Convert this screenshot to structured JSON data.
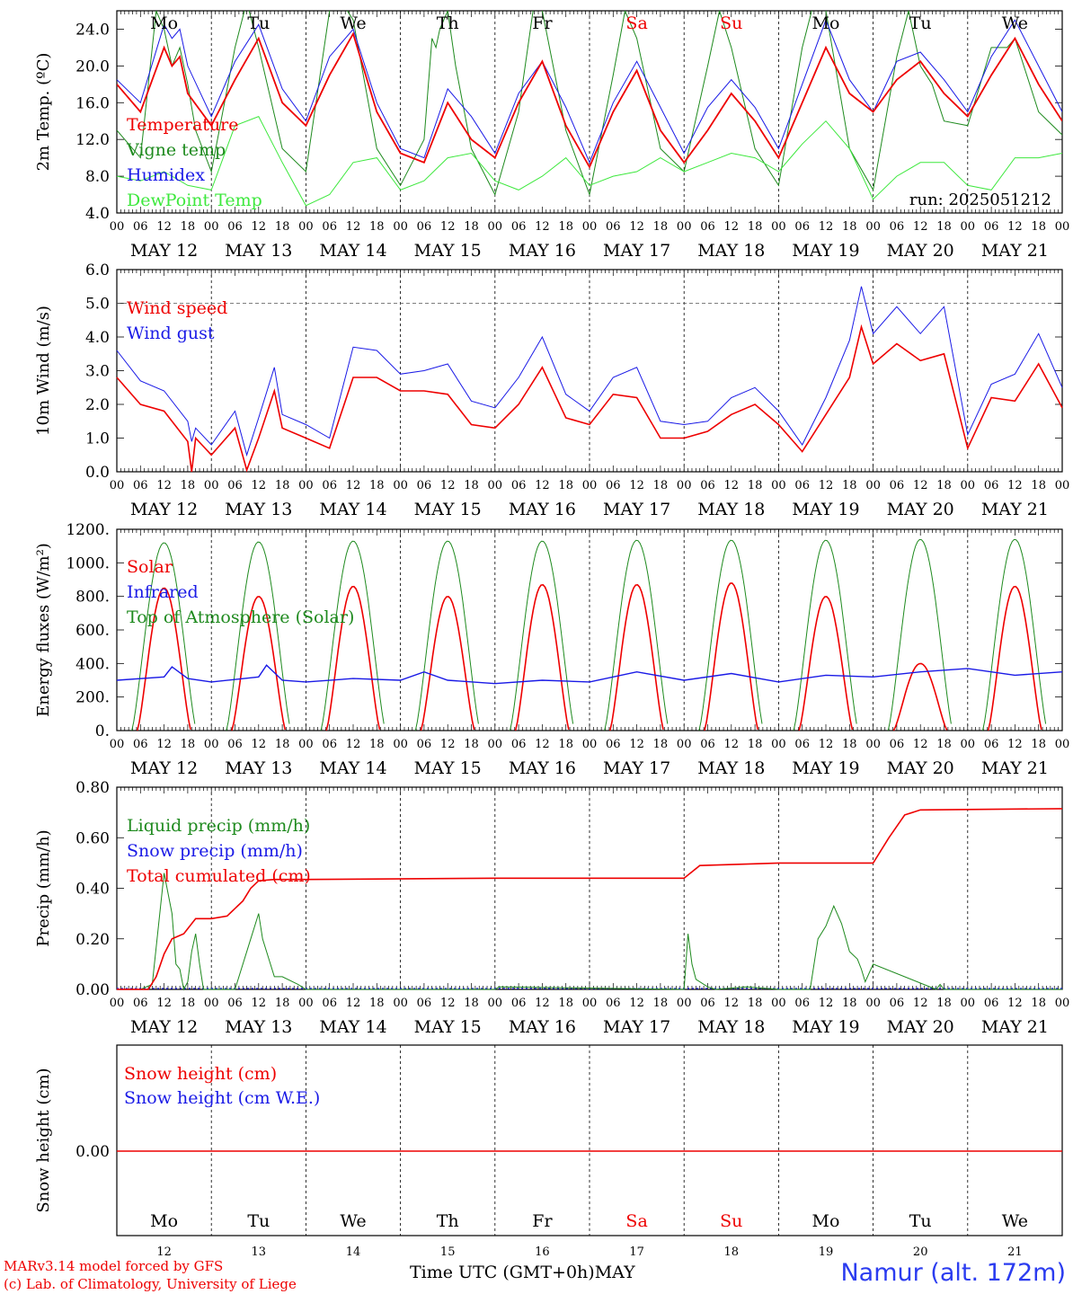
{
  "colors": {
    "red": "#ee0000",
    "blue": "#1a1ae6",
    "darkgreen": "#1e8a1e",
    "lightgreen": "#3ee83e",
    "weekend": "#ee0000",
    "station": "#2b3cf0"
  },
  "footer": {
    "credit1": "MARv3.14 model forced by GFS",
    "credit2": "(c) Lab. of Climatology, University of Liege",
    "xtitle": "Time UTC (GMT+0h)",
    "month": "MAY",
    "station": "Namur (alt. 172m)"
  },
  "chart_data": [
    {
      "id": "temp",
      "type": "line",
      "ylabel": "2m Temp. (ºC)",
      "ylim": [
        4,
        26
      ],
      "yticks": [
        4,
        8,
        12,
        16,
        20,
        24
      ],
      "ytick_labels": [
        "4.0",
        "8.0",
        "12.0",
        "16.0",
        "20.0",
        "24.0"
      ],
      "annotation": "run: 2025051212",
      "day_labels": [
        "Mo",
        "Tu",
        "We",
        "Th",
        "Fr",
        "Sa",
        "Su",
        "Mo",
        "Tu",
        "We"
      ],
      "date_labels": [
        "MAY 12",
        "MAY 13",
        "MAY 14",
        "MAY 15",
        "MAY 16",
        "MAY 17",
        "MAY 18",
        "MAY 19",
        "MAY 20",
        "MAY 21"
      ],
      "hour_labels": [
        "00",
        "06",
        "12",
        "18"
      ],
      "series": [
        {
          "name": "Temperature",
          "color": "red",
          "x": [
            0,
            6,
            12,
            14,
            16,
            18,
            24,
            30,
            36,
            42,
            48,
            54,
            60,
            66,
            72,
            78,
            84,
            90,
            96,
            102,
            108,
            114,
            120,
            126,
            132,
            138,
            144,
            150,
            156,
            162,
            168,
            174,
            180,
            186,
            192,
            198,
            204,
            210,
            216,
            222,
            228,
            234,
            240
          ],
          "y": [
            18,
            15,
            22,
            20,
            21,
            17,
            13.5,
            18.5,
            23,
            16,
            13.5,
            19,
            23.5,
            15,
            10.5,
            9.5,
            16,
            12,
            10,
            16,
            20.5,
            13.5,
            9,
            15,
            19.5,
            13,
            9.5,
            13,
            17,
            14,
            10,
            16,
            22,
            17,
            15,
            18.5,
            20.5,
            17,
            14.5,
            19,
            23,
            18,
            14
          ]
        },
        {
          "name": "Vigne temp",
          "color": "darkgreen",
          "x": [
            0,
            6,
            10,
            12,
            14,
            16,
            18,
            20,
            24,
            30,
            33,
            36,
            42,
            48,
            54,
            57,
            60,
            66,
            72,
            78,
            80,
            81,
            82,
            84,
            86,
            90,
            96,
            102,
            106,
            108,
            114,
            120,
            126,
            129,
            132,
            138,
            144,
            150,
            153,
            156,
            162,
            168,
            174,
            177,
            180,
            186,
            192,
            198,
            201,
            204,
            207,
            210,
            216,
            222,
            226,
            228,
            234,
            240
          ],
          "y": [
            13,
            10,
            26,
            24,
            20,
            22,
            18,
            13,
            8.5,
            22,
            27,
            22,
            11,
            8.5,
            26,
            27,
            25,
            11,
            7,
            12,
            23,
            22,
            24,
            26,
            20,
            11,
            6,
            15,
            27,
            26,
            13,
            6,
            19,
            26,
            23,
            11,
            8.5,
            20,
            26,
            22,
            11,
            7,
            22,
            27,
            26,
            11,
            6.5,
            21,
            26,
            20,
            18,
            14,
            13.5,
            22,
            22,
            23,
            15,
            12.5
          ]
        },
        {
          "name": "Humidex",
          "color": "blue",
          "x": [
            0,
            6,
            12,
            14,
            16,
            18,
            24,
            30,
            36,
            42,
            48,
            54,
            60,
            66,
            72,
            78,
            84,
            90,
            96,
            102,
            108,
            114,
            120,
            126,
            132,
            138,
            144,
            150,
            156,
            162,
            168,
            174,
            180,
            186,
            192,
            198,
            204,
            210,
            216,
            222,
            228,
            234,
            240
          ],
          "y": [
            18.5,
            16,
            24.5,
            23,
            24,
            20,
            14.5,
            20.5,
            24.5,
            17.5,
            14,
            21,
            24,
            16,
            11,
            10,
            17.5,
            14.5,
            10.5,
            17,
            20.5,
            15.5,
            9.5,
            16,
            20.5,
            15.5,
            10.5,
            15.5,
            18.5,
            15.5,
            11,
            18,
            25,
            18.5,
            15,
            20.5,
            21.5,
            18.5,
            15,
            21,
            25,
            20,
            15
          ]
        },
        {
          "name": "DewPoint Temp",
          "color": "lightgreen",
          "x": [
            0,
            6,
            12,
            18,
            24,
            30,
            36,
            42,
            48,
            54,
            60,
            66,
            72,
            78,
            84,
            90,
            96,
            102,
            108,
            114,
            120,
            126,
            132,
            138,
            144,
            150,
            156,
            162,
            168,
            174,
            180,
            186,
            192,
            198,
            204,
            210,
            216,
            222,
            228,
            234,
            240
          ],
          "y": [
            8,
            7.5,
            8.5,
            7,
            6.5,
            13.5,
            14.5,
            9.5,
            4.8,
            6,
            9.5,
            10,
            6.5,
            7.5,
            10,
            10.5,
            7.5,
            6.5,
            8,
            10,
            7,
            8,
            8.5,
            10,
            8.5,
            9.5,
            10.5,
            10,
            8.5,
            11.5,
            14,
            11,
            5.5,
            8,
            9.5,
            9.5,
            7,
            6.5,
            10,
            10,
            10.5
          ]
        }
      ]
    },
    {
      "id": "wind",
      "type": "line",
      "ylabel": "10m Wind (m/s)",
      "ylim": [
        0,
        6
      ],
      "yticks": [
        0,
        1,
        2,
        3,
        4,
        5,
        6
      ],
      "ytick_labels": [
        "0.0",
        "1.0",
        "2.0",
        "3.0",
        "4.0",
        "5.0",
        "6.0"
      ],
      "reference_line": 5,
      "date_labels": [
        "MAY 12",
        "MAY 13",
        "MAY 14",
        "MAY 15",
        "MAY 16",
        "MAY 17",
        "MAY 18",
        "MAY 19",
        "MAY 20",
        "MAY 21"
      ],
      "hour_labels": [
        "00",
        "06",
        "12",
        "18"
      ],
      "series": [
        {
          "name": "Wind speed",
          "color": "red",
          "x": [
            0,
            6,
            12,
            18,
            19,
            20,
            24,
            30,
            33,
            36,
            40,
            42,
            48,
            54,
            60,
            66,
            72,
            78,
            84,
            90,
            96,
            102,
            108,
            114,
            120,
            126,
            132,
            138,
            144,
            150,
            156,
            162,
            168,
            174,
            180,
            186,
            189,
            192,
            198,
            204,
            210,
            216,
            222,
            228,
            234,
            240
          ],
          "y": [
            2.8,
            2,
            1.8,
            0.9,
            0,
            1,
            0.5,
            1.3,
            0.05,
            1,
            2.4,
            1.3,
            1,
            0.7,
            2.8,
            2.8,
            2.4,
            2.4,
            2.3,
            1.4,
            1.3,
            2,
            3.1,
            1.6,
            1.4,
            2.3,
            2.2,
            1,
            1,
            1.2,
            1.7,
            2,
            1.4,
            0.6,
            1.7,
            2.8,
            4.3,
            3.2,
            3.8,
            3.3,
            3.5,
            0.7,
            2.2,
            2.1,
            3.2,
            1.9
          ]
        },
        {
          "name": "Wind gust",
          "color": "blue",
          "x": [
            0,
            6,
            12,
            18,
            19,
            20,
            24,
            30,
            33,
            36,
            40,
            42,
            48,
            54,
            60,
            66,
            72,
            78,
            84,
            90,
            96,
            102,
            108,
            114,
            120,
            126,
            132,
            138,
            144,
            150,
            156,
            162,
            168,
            174,
            180,
            186,
            189,
            192,
            198,
            204,
            210,
            216,
            222,
            228,
            234,
            240
          ],
          "y": [
            3.6,
            2.7,
            2.4,
            1.5,
            0.9,
            1.3,
            0.8,
            1.8,
            0.5,
            1.6,
            3.1,
            1.7,
            1.4,
            1,
            3.7,
            3.6,
            2.9,
            3,
            3.2,
            2.1,
            1.9,
            2.8,
            4,
            2.3,
            1.8,
            2.8,
            3.1,
            1.5,
            1.4,
            1.5,
            2.2,
            2.5,
            1.8,
            0.8,
            2.2,
            3.9,
            5.5,
            4.1,
            4.9,
            4.1,
            4.9,
            1.1,
            2.6,
            2.9,
            4.1,
            2.5
          ]
        }
      ]
    },
    {
      "id": "energy",
      "type": "line",
      "ylabel": "Energy fluxes (W/m²)",
      "ylim": [
        0,
        1200
      ],
      "yticks": [
        0,
        200,
        400,
        600,
        800,
        1000,
        1200
      ],
      "ytick_labels": [
        "0.",
        "200.",
        "400.",
        "600.",
        "800.",
        "1000.",
        "1200."
      ],
      "date_labels": [
        "MAY 12",
        "MAY 13",
        "MAY 14",
        "MAY 15",
        "MAY 16",
        "MAY 17",
        "MAY 18",
        "MAY 19",
        "MAY 20",
        "MAY 21"
      ],
      "hour_labels": [
        "00",
        "06",
        "12",
        "18"
      ],
      "series": [
        {
          "name": "Solar",
          "color": "red",
          "daily_peak": [
            850,
            800,
            860,
            800,
            870,
            870,
            880,
            800,
            400,
            860
          ]
        },
        {
          "name": "Infrared",
          "color": "blue",
          "x": [
            0,
            12,
            14,
            18,
            24,
            36,
            38,
            42,
            48,
            60,
            72,
            78,
            84,
            96,
            108,
            120,
            132,
            144,
            156,
            168,
            180,
            192,
            204,
            216,
            228,
            240
          ],
          "y": [
            300,
            320,
            380,
            310,
            290,
            320,
            390,
            300,
            290,
            310,
            300,
            350,
            300,
            280,
            300,
            290,
            350,
            300,
            340,
            290,
            330,
            320,
            350,
            370,
            330,
            350
          ]
        },
        {
          "name": "Top of Atmosphere (Solar)",
          "color": "darkgreen",
          "daily_peak": [
            1120,
            1125,
            1130,
            1130,
            1130,
            1135,
            1135,
            1135,
            1140,
            1140
          ]
        }
      ]
    },
    {
      "id": "precip",
      "type": "line",
      "ylabel": "Precip (mm/h)",
      "ylim": [
        0,
        0.8
      ],
      "yticks": [
        0,
        0.2,
        0.4,
        0.6,
        0.8
      ],
      "ytick_labels": [
        "0.00",
        "0.20",
        "0.40",
        "0.60",
        "0.80"
      ],
      "date_labels": [
        "MAY 12",
        "MAY 13",
        "MAY 14",
        "MAY 15",
        "MAY 16",
        "MAY 17",
        "MAY 18",
        "MAY 19",
        "MAY 20",
        "MAY 21"
      ],
      "hour_labels": [
        "00",
        "06",
        "12",
        "18"
      ],
      "series": [
        {
          "name": "Liquid precip (mm/h)",
          "color": "darkgreen",
          "x": [
            0,
            6,
            9,
            12,
            14,
            15,
            16,
            17,
            18,
            19,
            20,
            21,
            22,
            24,
            30,
            34,
            36,
            37,
            40,
            42,
            46,
            48,
            96,
            97,
            144,
            145,
            146,
            147,
            150,
            152,
            160,
            168,
            176,
            178,
            180,
            182,
            184,
            186,
            188,
            189,
            190,
            192,
            208,
            209,
            210,
            240
          ],
          "y": [
            0,
            0,
            0.02,
            0.46,
            0.3,
            0.1,
            0.08,
            0,
            0.03,
            0.15,
            0.22,
            0.1,
            0,
            0,
            0,
            0.2,
            0.3,
            0.2,
            0.05,
            0.05,
            0.02,
            0,
            0,
            0.01,
            0,
            0.22,
            0.1,
            0.04,
            0.01,
            0,
            0.01,
            0,
            0,
            0.2,
            0.25,
            0.33,
            0.26,
            0.15,
            0.12,
            0.08,
            0.03,
            0.1,
            0,
            0.02,
            0,
            0
          ]
        },
        {
          "name": "Snow precip (mm/h)",
          "color": "blue"
        },
        {
          "name": "Total cumulated (cm)",
          "color": "red",
          "x": [
            0,
            8,
            10,
            12,
            14,
            17,
            20,
            24,
            28,
            32,
            34,
            36,
            40,
            44,
            48,
            96,
            144,
            148,
            168,
            192,
            196,
            200,
            204,
            240
          ],
          "y": [
            0,
            0,
            0.05,
            0.14,
            0.2,
            0.22,
            0.28,
            0.28,
            0.29,
            0.35,
            0.4,
            0.43,
            0.435,
            0.435,
            0.435,
            0.44,
            0.44,
            0.49,
            0.5,
            0.5,
            0.6,
            0.69,
            0.71,
            0.715
          ]
        }
      ]
    },
    {
      "id": "snow",
      "type": "line",
      "ylabel": "Snow height (cm)",
      "yticks": [
        0
      ],
      "ytick_labels": [
        "0.00"
      ],
      "day_labels": [
        "Mo",
        "Tu",
        "We",
        "Th",
        "Fr",
        "Sa",
        "Su",
        "Mo",
        "Tu",
        "We"
      ],
      "day_numbers": [
        "12",
        "13",
        "14",
        "15",
        "16",
        "17",
        "18",
        "19",
        "20",
        "21"
      ],
      "series": [
        {
          "name": "Snow height (cm)",
          "color": "red",
          "y": [
            0
          ]
        },
        {
          "name": "Snow height (cm W.E.)",
          "color": "blue",
          "y": [
            0
          ]
        }
      ]
    }
  ]
}
